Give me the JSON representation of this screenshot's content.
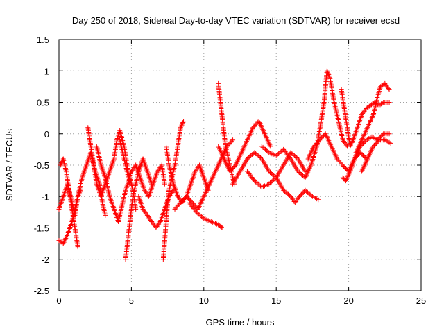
{
  "chart_data": {
    "type": "scatter",
    "title": "Day 250 of 2018, Sidereal Day-to-day VTEC variation (SDTVAR) for receiver ecsd",
    "xlabel": "GPS time / hours",
    "ylabel": "SDTVAR / TECUs",
    "xlim": [
      0,
      25
    ],
    "ylim": [
      -2.5,
      1.5
    ],
    "x_ticks": [
      0,
      5,
      10,
      15,
      20,
      25
    ],
    "x_tick_labels": [
      "0",
      "5",
      "10",
      "15",
      "20",
      "25"
    ],
    "y_ticks": [
      -2.5,
      -2,
      -1.5,
      -1,
      -0.5,
      0,
      0.5,
      1,
      1.5
    ],
    "y_tick_labels": [
      "-2.5",
      "-2",
      "-1.5",
      "-1",
      "-0.5",
      "0",
      "0.5",
      "1",
      "1.5"
    ],
    "grid": true,
    "marker": "+",
    "series": [
      {
        "name": "SDTVAR",
        "color": "#ff0000",
        "tracks": [
          [
            [
              0.0,
              -1.2
            ],
            [
              0.3,
              -1.0
            ],
            [
              0.6,
              -0.8
            ],
            [
              0.9,
              -1.1
            ],
            [
              1.1,
              -1.3
            ],
            [
              1.3,
              -1.0
            ],
            [
              1.6,
              -0.7
            ],
            [
              1.9,
              -0.5
            ],
            [
              2.2,
              -0.3
            ],
            [
              2.5,
              -0.6
            ],
            [
              2.8,
              -0.8
            ],
            [
              3.0,
              -1.1
            ],
            [
              3.2,
              -1.3
            ]
          ],
          [
            [
              0.0,
              -1.7
            ],
            [
              0.3,
              -1.75
            ],
            [
              0.6,
              -1.6
            ],
            [
              0.9,
              -1.4
            ],
            [
              1.1,
              -1.2
            ],
            [
              1.3,
              -1.0
            ],
            [
              1.5,
              -0.9
            ]
          ],
          [
            [
              0.1,
              -0.5
            ],
            [
              0.3,
              -0.4
            ],
            [
              0.5,
              -0.6
            ],
            [
              0.7,
              -0.9
            ],
            [
              0.9,
              -1.2
            ],
            [
              1.1,
              -1.5
            ],
            [
              1.3,
              -1.8
            ]
          ],
          [
            [
              2.0,
              0.1
            ],
            [
              2.2,
              -0.2
            ],
            [
              2.4,
              -0.5
            ],
            [
              2.6,
              -0.8
            ],
            [
              2.9,
              -1.0
            ],
            [
              3.2,
              -0.8
            ],
            [
              3.5,
              -0.6
            ],
            [
              3.8,
              -0.4
            ],
            [
              4.0,
              -0.1
            ],
            [
              4.2,
              0.05
            ],
            [
              4.5,
              -0.2
            ],
            [
              4.7,
              -0.5
            ],
            [
              4.9,
              -0.8
            ]
          ],
          [
            [
              2.6,
              -0.2
            ],
            [
              2.9,
              -0.5
            ],
            [
              3.2,
              -0.7
            ],
            [
              3.5,
              -1.0
            ],
            [
              3.8,
              -1.2
            ],
            [
              4.1,
              -1.4
            ],
            [
              4.3,
              -1.2
            ],
            [
              4.6,
              -0.9
            ],
            [
              4.9,
              -0.7
            ],
            [
              5.1,
              -0.9
            ],
            [
              5.3,
              -1.2
            ]
          ],
          [
            [
              4.6,
              -2.0
            ],
            [
              4.7,
              -1.8
            ],
            [
              4.8,
              -1.6
            ],
            [
              4.9,
              -1.4
            ],
            [
              5.0,
              -1.2
            ],
            [
              5.1,
              -1.0
            ],
            [
              5.3,
              -0.8
            ],
            [
              5.5,
              -0.6
            ],
            [
              5.8,
              -0.4
            ],
            [
              6.1,
              -0.6
            ],
            [
              6.4,
              -0.8
            ]
          ],
          [
            [
              4.2,
              -0.1
            ],
            [
              4.4,
              -0.3
            ],
            [
              4.6,
              -0.5
            ],
            [
              4.8,
              -0.7
            ],
            [
              5.0,
              -0.6
            ],
            [
              5.3,
              -0.5
            ],
            [
              5.6,
              -0.7
            ],
            [
              5.9,
              -0.9
            ],
            [
              6.2,
              -1.0
            ],
            [
              6.5,
              -0.8
            ],
            [
              6.8,
              -0.6
            ],
            [
              7.1,
              -0.5
            ],
            [
              7.3,
              -0.8
            ]
          ],
          [
            [
              5.5,
              -1.0
            ],
            [
              5.8,
              -1.2
            ],
            [
              6.1,
              -1.3
            ],
            [
              6.4,
              -1.4
            ],
            [
              6.7,
              -1.5
            ],
            [
              7.0,
              -1.4
            ],
            [
              7.3,
              -1.2
            ],
            [
              7.6,
              -1.0
            ],
            [
              7.9,
              -0.9
            ]
          ],
          [
            [
              7.2,
              -2.0
            ],
            [
              7.3,
              -1.7
            ],
            [
              7.4,
              -1.4
            ],
            [
              7.5,
              -1.1
            ],
            [
              7.6,
              -0.9
            ],
            [
              7.8,
              -0.7
            ],
            [
              8.0,
              -0.5
            ],
            [
              8.2,
              -0.2
            ],
            [
              8.4,
              0.1
            ],
            [
              8.6,
              0.2
            ]
          ],
          [
            [
              7.4,
              -0.2
            ],
            [
              7.6,
              -0.5
            ],
            [
              7.9,
              -0.8
            ],
            [
              8.2,
              -1.0
            ],
            [
              8.5,
              -1.1
            ],
            [
              8.8,
              -1.0
            ],
            [
              9.1,
              -0.8
            ],
            [
              9.4,
              -0.6
            ],
            [
              9.7,
              -0.5
            ],
            [
              10.0,
              -0.7
            ],
            [
              10.3,
              -0.9
            ]
          ],
          [
            [
              8.0,
              -1.2
            ],
            [
              8.4,
              -1.1
            ],
            [
              8.8,
              -1.0
            ],
            [
              9.2,
              -1.1
            ],
            [
              9.6,
              -1.2
            ],
            [
              10.0,
              -1.0
            ],
            [
              10.4,
              -0.8
            ],
            [
              10.8,
              -0.6
            ],
            [
              11.2,
              -0.4
            ],
            [
              11.6,
              -0.2
            ],
            [
              12.0,
              -0.1
            ]
          ],
          [
            [
              9.0,
              -1.1
            ],
            [
              9.5,
              -1.25
            ],
            [
              10.0,
              -1.35
            ],
            [
              10.5,
              -1.4
            ],
            [
              11.0,
              -1.45
            ],
            [
              11.3,
              -1.5
            ]
          ],
          [
            [
              11.0,
              0.8
            ],
            [
              11.1,
              0.6
            ],
            [
              11.2,
              0.4
            ],
            [
              11.3,
              0.2
            ],
            [
              11.4,
              0.0
            ],
            [
              11.5,
              -0.2
            ],
            [
              11.7,
              -0.4
            ],
            [
              11.9,
              -0.6
            ],
            [
              12.1,
              -0.8
            ]
          ],
          [
            [
              11.0,
              -0.2
            ],
            [
              11.4,
              -0.4
            ],
            [
              11.8,
              -0.6
            ],
            [
              12.2,
              -0.5
            ],
            [
              12.6,
              -0.3
            ],
            [
              13.0,
              -0.1
            ],
            [
              13.4,
              0.1
            ],
            [
              13.8,
              0.2
            ],
            [
              14.2,
              0.0
            ],
            [
              14.6,
              -0.2
            ]
          ],
          [
            [
              12.0,
              -0.8
            ],
            [
              12.5,
              -0.6
            ],
            [
              13.0,
              -0.4
            ],
            [
              13.5,
              -0.3
            ],
            [
              14.0,
              -0.4
            ],
            [
              14.5,
              -0.6
            ],
            [
              15.0,
              -0.7
            ],
            [
              15.5,
              -0.5
            ],
            [
              16.0,
              -0.3
            ],
            [
              16.5,
              -0.4
            ],
            [
              17.0,
              -0.6
            ]
          ],
          [
            [
              13.0,
              -0.6
            ],
            [
              13.5,
              -0.75
            ],
            [
              14.0,
              -0.85
            ],
            [
              14.5,
              -0.8
            ],
            [
              15.0,
              -0.7
            ],
            [
              15.5,
              -0.9
            ],
            [
              16.0,
              -1.0
            ],
            [
              16.3,
              -1.1
            ],
            [
              16.6,
              -1.0
            ],
            [
              17.0,
              -0.9
            ],
            [
              17.5,
              -1.0
            ],
            [
              17.9,
              -1.05
            ]
          ],
          [
            [
              14.0,
              -0.2
            ],
            [
              14.5,
              -0.3
            ],
            [
              15.0,
              -0.35
            ],
            [
              15.5,
              -0.25
            ],
            [
              16.0,
              -0.4
            ],
            [
              16.5,
              -0.6
            ],
            [
              17.0,
              -0.7
            ],
            [
              17.4,
              -0.5
            ],
            [
              17.8,
              -0.2
            ],
            [
              18.1,
              0.2
            ],
            [
              18.3,
              0.5
            ],
            [
              18.5,
              1.0
            ],
            [
              18.7,
              0.9
            ],
            [
              19.0,
              0.5
            ],
            [
              19.3,
              0.2
            ],
            [
              19.6,
              -0.1
            ],
            [
              19.9,
              -0.2
            ]
          ],
          [
            [
              17.2,
              -0.4
            ],
            [
              17.6,
              -0.2
            ],
            [
              18.0,
              -0.1
            ],
            [
              18.4,
              0.0
            ],
            [
              18.8,
              -0.2
            ],
            [
              19.2,
              -0.4
            ],
            [
              19.6,
              -0.5
            ],
            [
              20.0,
              -0.6
            ],
            [
              20.4,
              -0.4
            ],
            [
              20.8,
              -0.3
            ],
            [
              21.2,
              -0.4
            ]
          ],
          [
            [
              19.5,
              0.7
            ],
            [
              19.7,
              0.4
            ],
            [
              19.9,
              0.1
            ],
            [
              20.1,
              -0.2
            ],
            [
              20.3,
              -0.1
            ],
            [
              20.6,
              0.1
            ],
            [
              20.9,
              0.3
            ],
            [
              21.2,
              0.4
            ],
            [
              21.5,
              0.45
            ],
            [
              21.8,
              0.5
            ],
            [
              22.1,
              0.45
            ],
            [
              22.4,
              0.5
            ],
            [
              22.8,
              0.5
            ]
          ],
          [
            [
              20.5,
              -0.3
            ],
            [
              20.9,
              -0.1
            ],
            [
              21.3,
              0.1
            ],
            [
              21.7,
              0.3
            ],
            [
              22.0,
              0.6
            ],
            [
              22.2,
              0.75
            ],
            [
              22.5,
              0.8
            ],
            [
              22.8,
              0.7
            ]
          ],
          [
            [
              19.6,
              -0.7
            ],
            [
              19.8,
              -0.75
            ],
            [
              20.1,
              -0.6
            ],
            [
              20.4,
              -0.4
            ],
            [
              20.8,
              -0.2
            ],
            [
              21.2,
              -0.1
            ],
            [
              21.6,
              -0.05
            ],
            [
              22.0,
              -0.1
            ],
            [
              22.4,
              0.0
            ],
            [
              22.8,
              0.0
            ]
          ],
          [
            [
              20.9,
              -0.6
            ],
            [
              21.3,
              -0.4
            ],
            [
              21.7,
              -0.2
            ],
            [
              22.1,
              -0.1
            ],
            [
              22.5,
              -0.1
            ],
            [
              22.9,
              -0.15
            ]
          ]
        ]
      }
    ]
  }
}
